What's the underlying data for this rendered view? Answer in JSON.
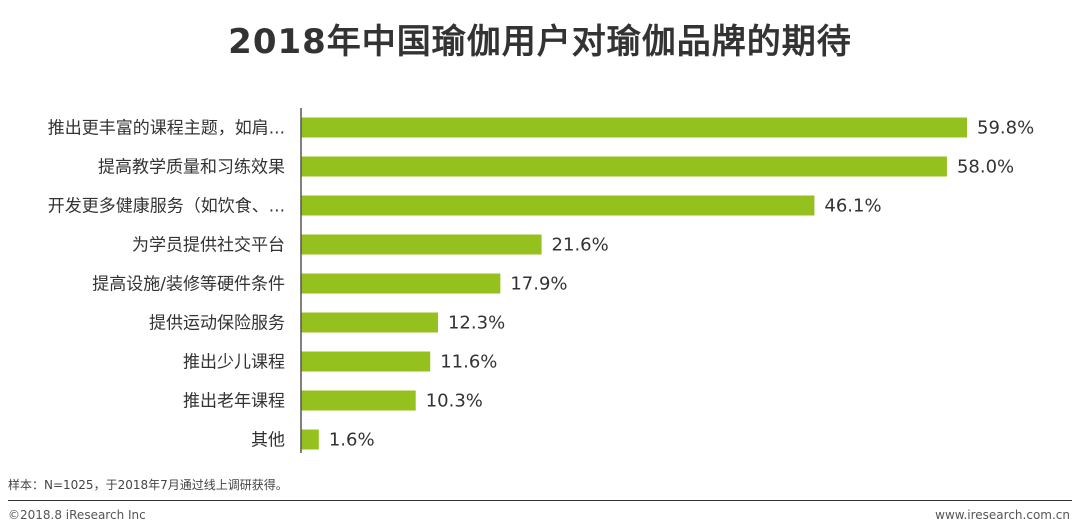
{
  "chart_data": {
    "type": "bar",
    "orientation": "horizontal",
    "title": "2018年中国瑜伽用户对瑜伽品牌的期待",
    "categories": [
      "推出更丰富的课程主题，如肩...",
      "提高教学质量和习练效果",
      "开发更多健康服务（如饮食、...",
      "为学员提供社交平台",
      "提高设施/装修等硬件条件",
      "提供运动保险服务",
      "推出少儿课程",
      "推出老年课程",
      "其他"
    ],
    "values": [
      59.8,
      58.0,
      46.1,
      21.6,
      17.9,
      12.3,
      11.6,
      10.3,
      1.6
    ],
    "value_labels": [
      "59.8%",
      "58.0%",
      "46.1%",
      "21.6%",
      "17.9%",
      "12.3%",
      "11.6%",
      "10.3%",
      "1.6%"
    ],
    "unit": "%",
    "xlim": [
      0,
      60
    ],
    "grid": false,
    "bar_color": "#95c11f"
  },
  "note": "样本：N=1025，于2018年7月通过线上调研获得。",
  "footer": {
    "copyright": "©2018.8 iResearch Inc",
    "website": "www.iresearch.com.cn"
  }
}
